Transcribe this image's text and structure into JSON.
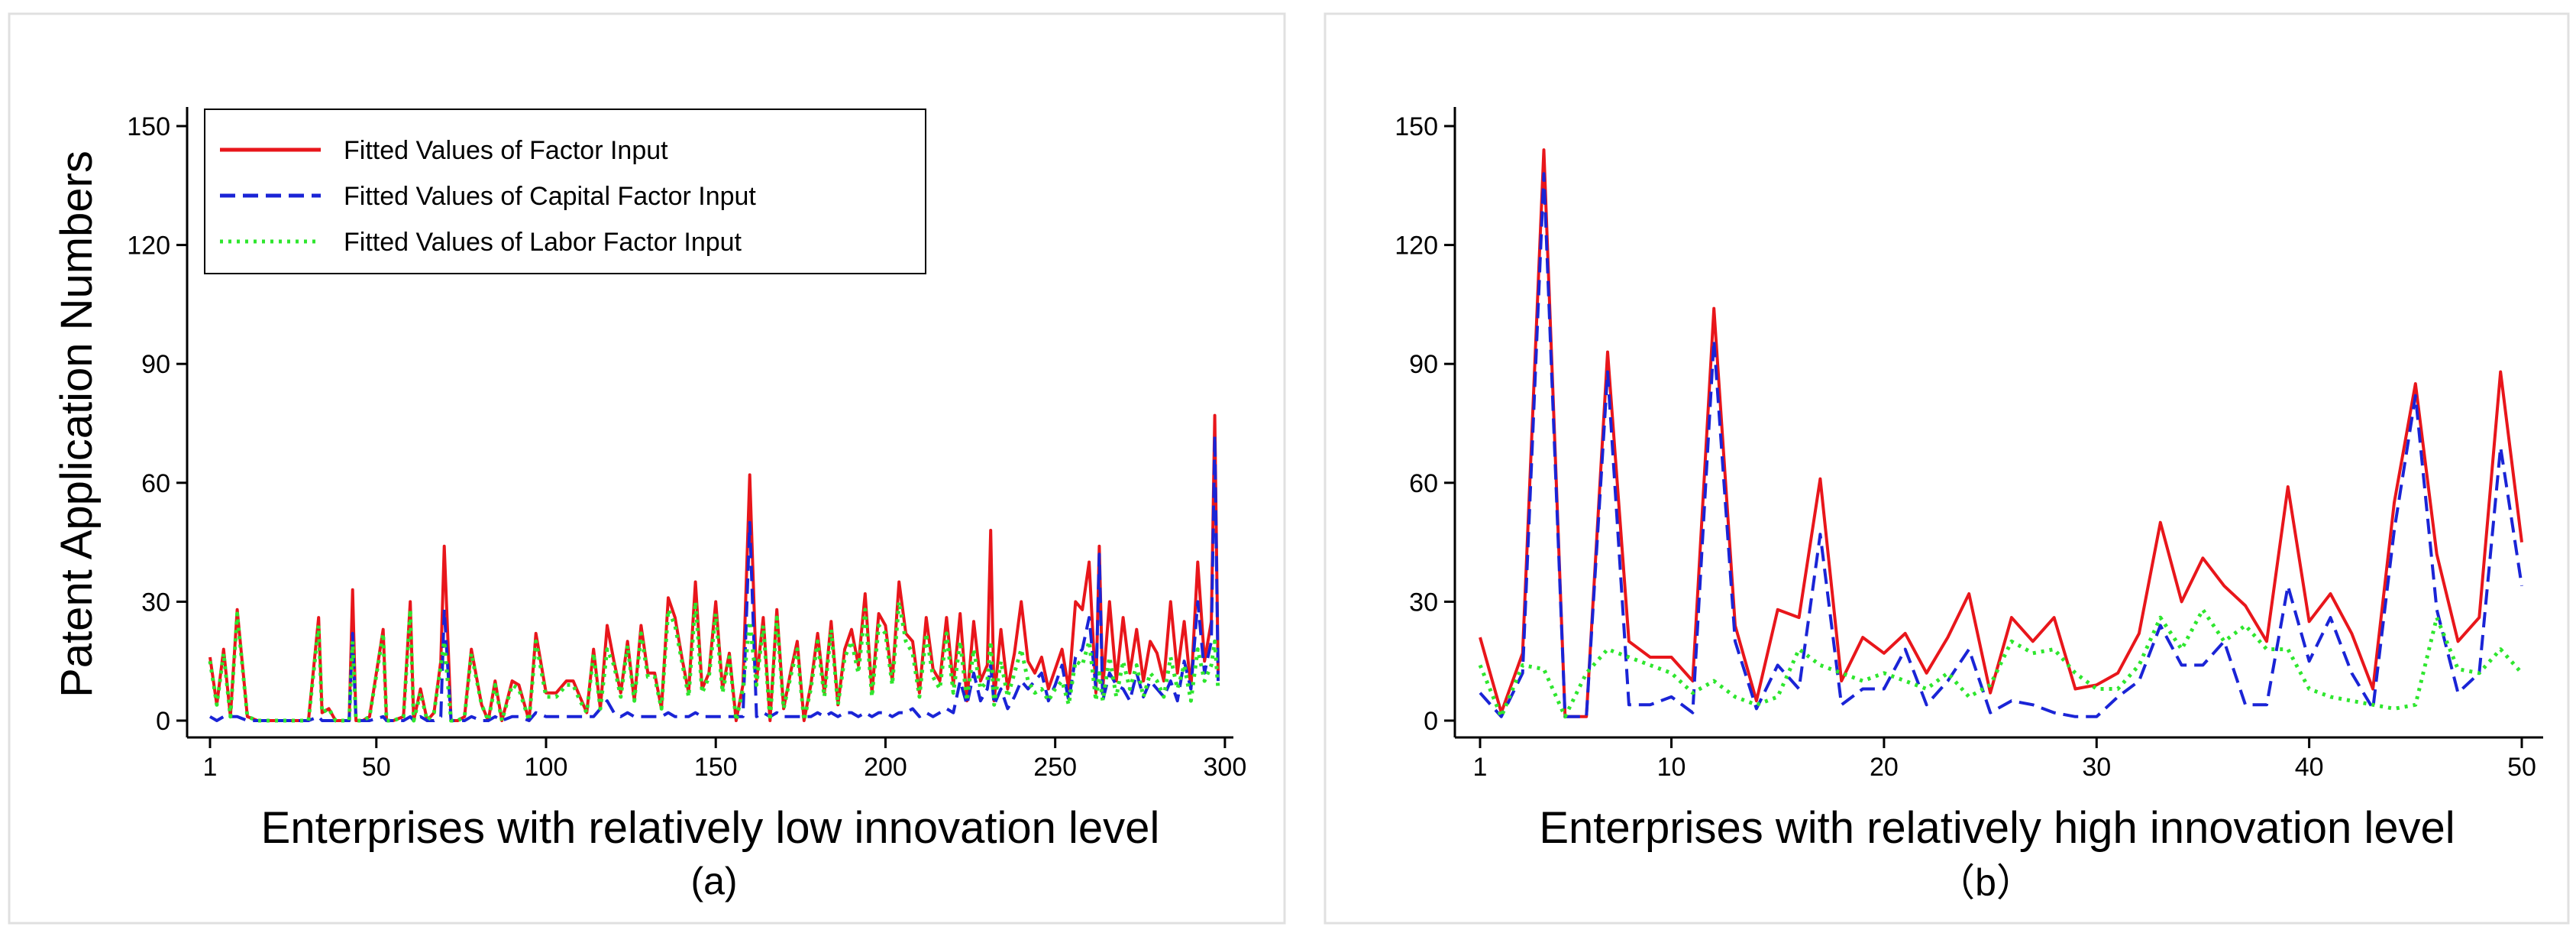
{
  "colors": {
    "factor": "#e8161b",
    "capital": "#1a24d6",
    "labor": "#2ee62e"
  },
  "chart_data": [
    {
      "type": "line",
      "panel_label": "(a)",
      "title": "",
      "xlabel": "Enterprises with relatively low innovation level",
      "ylabel": "Patent Application Numbers",
      "xlim": [
        1,
        298
      ],
      "ylim": [
        0,
        150
      ],
      "xticks": [
        1,
        50,
        100,
        150,
        200,
        250,
        300
      ],
      "yticks": [
        0,
        30,
        60,
        90,
        120,
        150
      ],
      "legend_position": "top-left",
      "x": [
        1,
        3,
        5,
        7,
        9,
        12,
        15,
        20,
        25,
        30,
        33,
        34,
        36,
        38,
        40,
        42,
        43,
        44,
        46,
        48,
        52,
        53,
        55,
        58,
        60,
        61,
        63,
        65,
        67,
        69,
        70,
        72,
        74,
        76,
        78,
        81,
        83,
        85,
        87,
        90,
        92,
        95,
        97,
        100,
        103,
        106,
        108,
        110,
        112,
        114,
        116,
        118,
        120,
        122,
        124,
        126,
        128,
        130,
        132,
        134,
        136,
        138,
        140,
        142,
        144,
        146,
        148,
        150,
        152,
        154,
        156,
        158,
        160,
        162,
        164,
        166,
        168,
        170,
        172,
        174,
        176,
        178,
        180,
        182,
        184,
        186,
        188,
        190,
        192,
        194,
        196,
        198,
        200,
        202,
        204,
        206,
        208,
        210,
        212,
        214,
        216,
        218,
        220,
        222,
        224,
        226,
        228,
        230,
        231,
        232,
        234,
        236,
        238,
        240,
        242,
        244,
        246,
        248,
        250,
        252,
        254,
        256,
        258,
        260,
        262,
        263,
        264,
        266,
        268,
        270,
        272,
        274,
        276,
        278,
        280,
        282,
        284,
        286,
        288,
        290,
        292,
        294,
        296,
        297,
        298
      ],
      "series": [
        {
          "name": "Fitted Values of Factor Input",
          "style": "solid",
          "values": [
            16,
            4,
            18,
            1,
            28,
            1,
            0,
            0,
            0,
            0,
            26,
            2,
            3,
            0,
            0,
            0,
            33,
            0,
            0,
            1,
            23,
            0,
            0,
            1,
            30,
            0,
            8,
            0,
            2,
            15,
            44,
            0,
            0,
            1,
            18,
            4,
            0,
            10,
            0,
            10,
            9,
            0,
            22,
            7,
            7,
            10,
            10,
            6,
            2,
            18,
            3,
            24,
            15,
            7,
            20,
            5,
            24,
            12,
            12,
            3,
            31,
            26,
            16,
            7,
            35,
            8,
            12,
            30,
            8,
            17,
            0,
            9,
            62,
            10,
            26,
            0,
            28,
            3,
            12,
            20,
            0,
            9,
            22,
            7,
            25,
            4,
            18,
            23,
            14,
            32,
            7,
            27,
            24,
            10,
            35,
            22,
            20,
            7,
            26,
            13,
            10,
            26,
            9,
            27,
            5,
            25,
            10,
            14,
            48,
            5,
            23,
            8,
            17,
            30,
            15,
            12,
            16,
            8,
            13,
            18,
            8,
            30,
            28,
            40,
            7,
            44,
            8,
            30,
            10,
            26,
            12,
            23,
            10,
            20,
            17,
            10,
            30,
            12,
            25,
            8,
            40,
            15,
            25,
            77,
            12
          ]
        },
        {
          "name": "Fitted Values of Capital Factor Input",
          "style": "dashed",
          "values": [
            1,
            0,
            1,
            1,
            1,
            0,
            0,
            0,
            0,
            0,
            1,
            0,
            0,
            0,
            0,
            0,
            22,
            0,
            0,
            0,
            1,
            0,
            0,
            0,
            1,
            0,
            1,
            0,
            0,
            1,
            28,
            0,
            0,
            0,
            1,
            0,
            0,
            1,
            0,
            1,
            1,
            0,
            2,
            1,
            1,
            1,
            1,
            1,
            1,
            1,
            3,
            5,
            2,
            1,
            2,
            1,
            1,
            1,
            1,
            1,
            2,
            1,
            1,
            1,
            2,
            1,
            1,
            1,
            1,
            1,
            1,
            1,
            50,
            1,
            2,
            1,
            2,
            1,
            1,
            1,
            1,
            1,
            2,
            1,
            2,
            1,
            2,
            2,
            1,
            2,
            1,
            2,
            2,
            1,
            2,
            2,
            3,
            1,
            2,
            1,
            2,
            3,
            2,
            10,
            4,
            12,
            5,
            8,
            14,
            4,
            8,
            3,
            6,
            10,
            8,
            10,
            12,
            5,
            9,
            14,
            5,
            16,
            18,
            26,
            8,
            42,
            5,
            12,
            9,
            8,
            5,
            12,
            6,
            10,
            8,
            6,
            10,
            5,
            15,
            8,
            30,
            12,
            20,
            72,
            10
          ]
        },
        {
          "name": "Fitted Values of Labor Factor Input",
          "style": "dotted",
          "values": [
            15,
            4,
            17,
            1,
            27,
            1,
            0,
            0,
            0,
            0,
            24,
            2,
            3,
            0,
            0,
            0,
            20,
            0,
            0,
            1,
            22,
            0,
            0,
            1,
            28,
            0,
            7,
            0,
            2,
            14,
            20,
            0,
            0,
            1,
            17,
            4,
            0,
            9,
            0,
            9,
            8,
            0,
            20,
            6,
            6,
            9,
            9,
            5,
            2,
            17,
            3,
            18,
            14,
            6,
            19,
            5,
            22,
            11,
            11,
            3,
            28,
            24,
            15,
            6,
            30,
            7,
            11,
            27,
            7,
            16,
            0,
            8,
            25,
            9,
            24,
            0,
            26,
            3,
            11,
            18,
            0,
            8,
            20,
            6,
            23,
            4,
            16,
            20,
            12,
            28,
            6,
            24,
            22,
            9,
            30,
            20,
            17,
            6,
            22,
            11,
            8,
            22,
            7,
            20,
            5,
            18,
            8,
            10,
            20,
            4,
            15,
            6,
            12,
            18,
            10,
            7,
            8,
            5,
            8,
            10,
            4,
            15,
            14,
            20,
            5,
            12,
            5,
            16,
            6,
            15,
            8,
            14,
            6,
            12,
            10,
            6,
            16,
            8,
            14,
            5,
            18,
            10,
            14,
            20,
            8
          ]
        }
      ]
    },
    {
      "type": "line",
      "panel_label": "（b）",
      "title": "",
      "xlabel": "Enterprises with relatively high innovation level",
      "ylabel": "",
      "xlim": [
        1,
        50
      ],
      "ylim": [
        0,
        150
      ],
      "xticks": [
        1,
        10,
        20,
        30,
        40,
        50
      ],
      "yticks": [
        0,
        30,
        60,
        90,
        120,
        150
      ],
      "x": [
        1,
        2,
        3,
        4,
        5,
        6,
        7,
        8,
        9,
        10,
        11,
        12,
        13,
        14,
        15,
        16,
        17,
        18,
        19,
        20,
        21,
        22,
        23,
        24,
        25,
        26,
        27,
        28,
        29,
        30,
        31,
        32,
        33,
        34,
        35,
        36,
        37,
        38,
        39,
        40,
        41,
        42,
        43,
        44,
        45,
        46,
        47,
        48,
        49,
        50
      ],
      "series": [
        {
          "name": "Fitted Values of Factor Input",
          "style": "solid",
          "values": [
            21,
            2,
            17,
            144,
            1,
            1,
            93,
            20,
            16,
            16,
            10,
            104,
            24,
            5,
            28,
            26,
            61,
            10,
            21,
            17,
            22,
            12,
            21,
            32,
            7,
            26,
            20,
            26,
            8,
            9,
            12,
            22,
            50,
            30,
            41,
            34,
            29,
            20,
            59,
            25,
            32,
            22,
            8,
            55,
            85,
            42,
            20,
            26,
            88,
            45
          ]
        },
        {
          "name": "Fitted Values of Capital Factor Input",
          "style": "dashed",
          "values": [
            7,
            1,
            12,
            138,
            1,
            1,
            88,
            4,
            4,
            6,
            2,
            96,
            20,
            3,
            14,
            8,
            47,
            4,
            8,
            8,
            18,
            4,
            10,
            18,
            2,
            5,
            4,
            2,
            1,
            1,
            6,
            10,
            24,
            14,
            14,
            20,
            4,
            4,
            34,
            15,
            26,
            12,
            3,
            48,
            82,
            28,
            7,
            12,
            69,
            34
          ]
        },
        {
          "name": "Fitted Values of Labor Factor Input",
          "style": "dotted",
          "values": [
            14,
            1,
            14,
            13,
            1,
            12,
            18,
            16,
            14,
            12,
            7,
            10,
            6,
            4,
            6,
            18,
            14,
            12,
            10,
            12,
            10,
            8,
            12,
            6,
            9,
            20,
            17,
            18,
            12,
            8,
            8,
            14,
            26,
            18,
            28,
            20,
            24,
            18,
            18,
            8,
            6,
            5,
            4,
            3,
            4,
            26,
            13,
            12,
            18,
            12
          ]
        }
      ]
    }
  ]
}
